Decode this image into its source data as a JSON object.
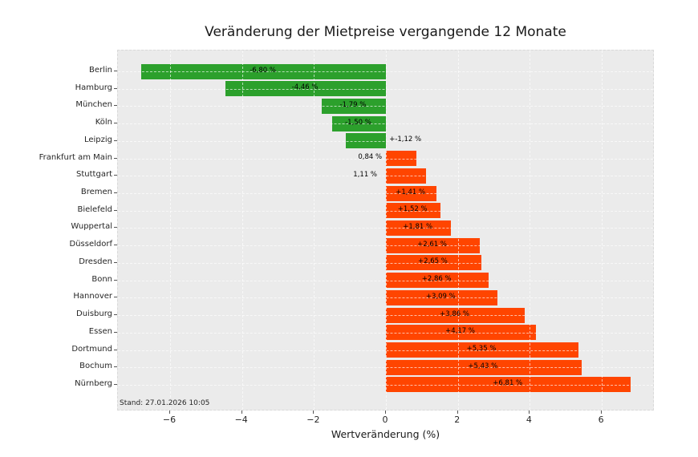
{
  "chart_data": {
    "type": "bar",
    "orientation": "horizontal",
    "title": "Veränderung der Mietpreise vergangende 12 Monate",
    "xlabel": "Wertveränderung (%)",
    "ylabel": "",
    "annotation": "Stand: 27.01.2026 10:05",
    "categories": [
      "Berlin",
      "Hamburg",
      "München",
      "Köln",
      "Leipzig",
      "Frankfurt am Main",
      "Stuttgart",
      "Bremen",
      "Bielefeld",
      "Wuppertal",
      "Düsseldorf",
      "Dresden",
      "Bonn",
      "Hannover",
      "Duisburg",
      "Essen",
      "Dortmund",
      "Bochum",
      "Nürnberg"
    ],
    "values": [
      -6.8,
      -4.46,
      -1.79,
      -1.5,
      -1.12,
      0.84,
      1.11,
      1.41,
      1.52,
      1.81,
      2.61,
      2.65,
      2.86,
      3.09,
      3.86,
      4.17,
      5.35,
      5.43,
      6.81
    ],
    "bar_labels": [
      "-6,80 %",
      "-4,46 %",
      "-1,79 %",
      "-1,50 %",
      "+-1,12 %",
      "0,84 %",
      "1,11 %",
      "+1,41 %",
      "+1,52 %",
      "+1,81 %",
      "+2,61 %",
      "+2,65 %",
      "+2,86 %",
      "+3,09 %",
      "+3,86 %",
      "+4,17 %",
      "+5,35 %",
      "+5,43 %",
      "+6,81 %"
    ],
    "bar_label_placements": [
      "inside",
      "inside",
      "inside",
      "inside",
      "outside",
      "outside",
      "outside",
      "inside",
      "inside",
      "inside",
      "inside",
      "inside",
      "inside",
      "inside",
      "inside",
      "inside",
      "inside",
      "inside",
      "inside"
    ],
    "negative_color": "#2ca02c",
    "positive_color": "#ff4500",
    "plot_background": "#ebebeb",
    "figure_background": "#ffffff",
    "grid": true,
    "grid_style": "dashed",
    "legend": "none",
    "xlim": [
      -7.45,
      7.47
    ],
    "xticks": [
      -6,
      -4,
      -2,
      0,
      2,
      4,
      6
    ],
    "xtick_labels": [
      "−6",
      "−4",
      "−2",
      "0",
      "2",
      "4",
      "6"
    ]
  }
}
